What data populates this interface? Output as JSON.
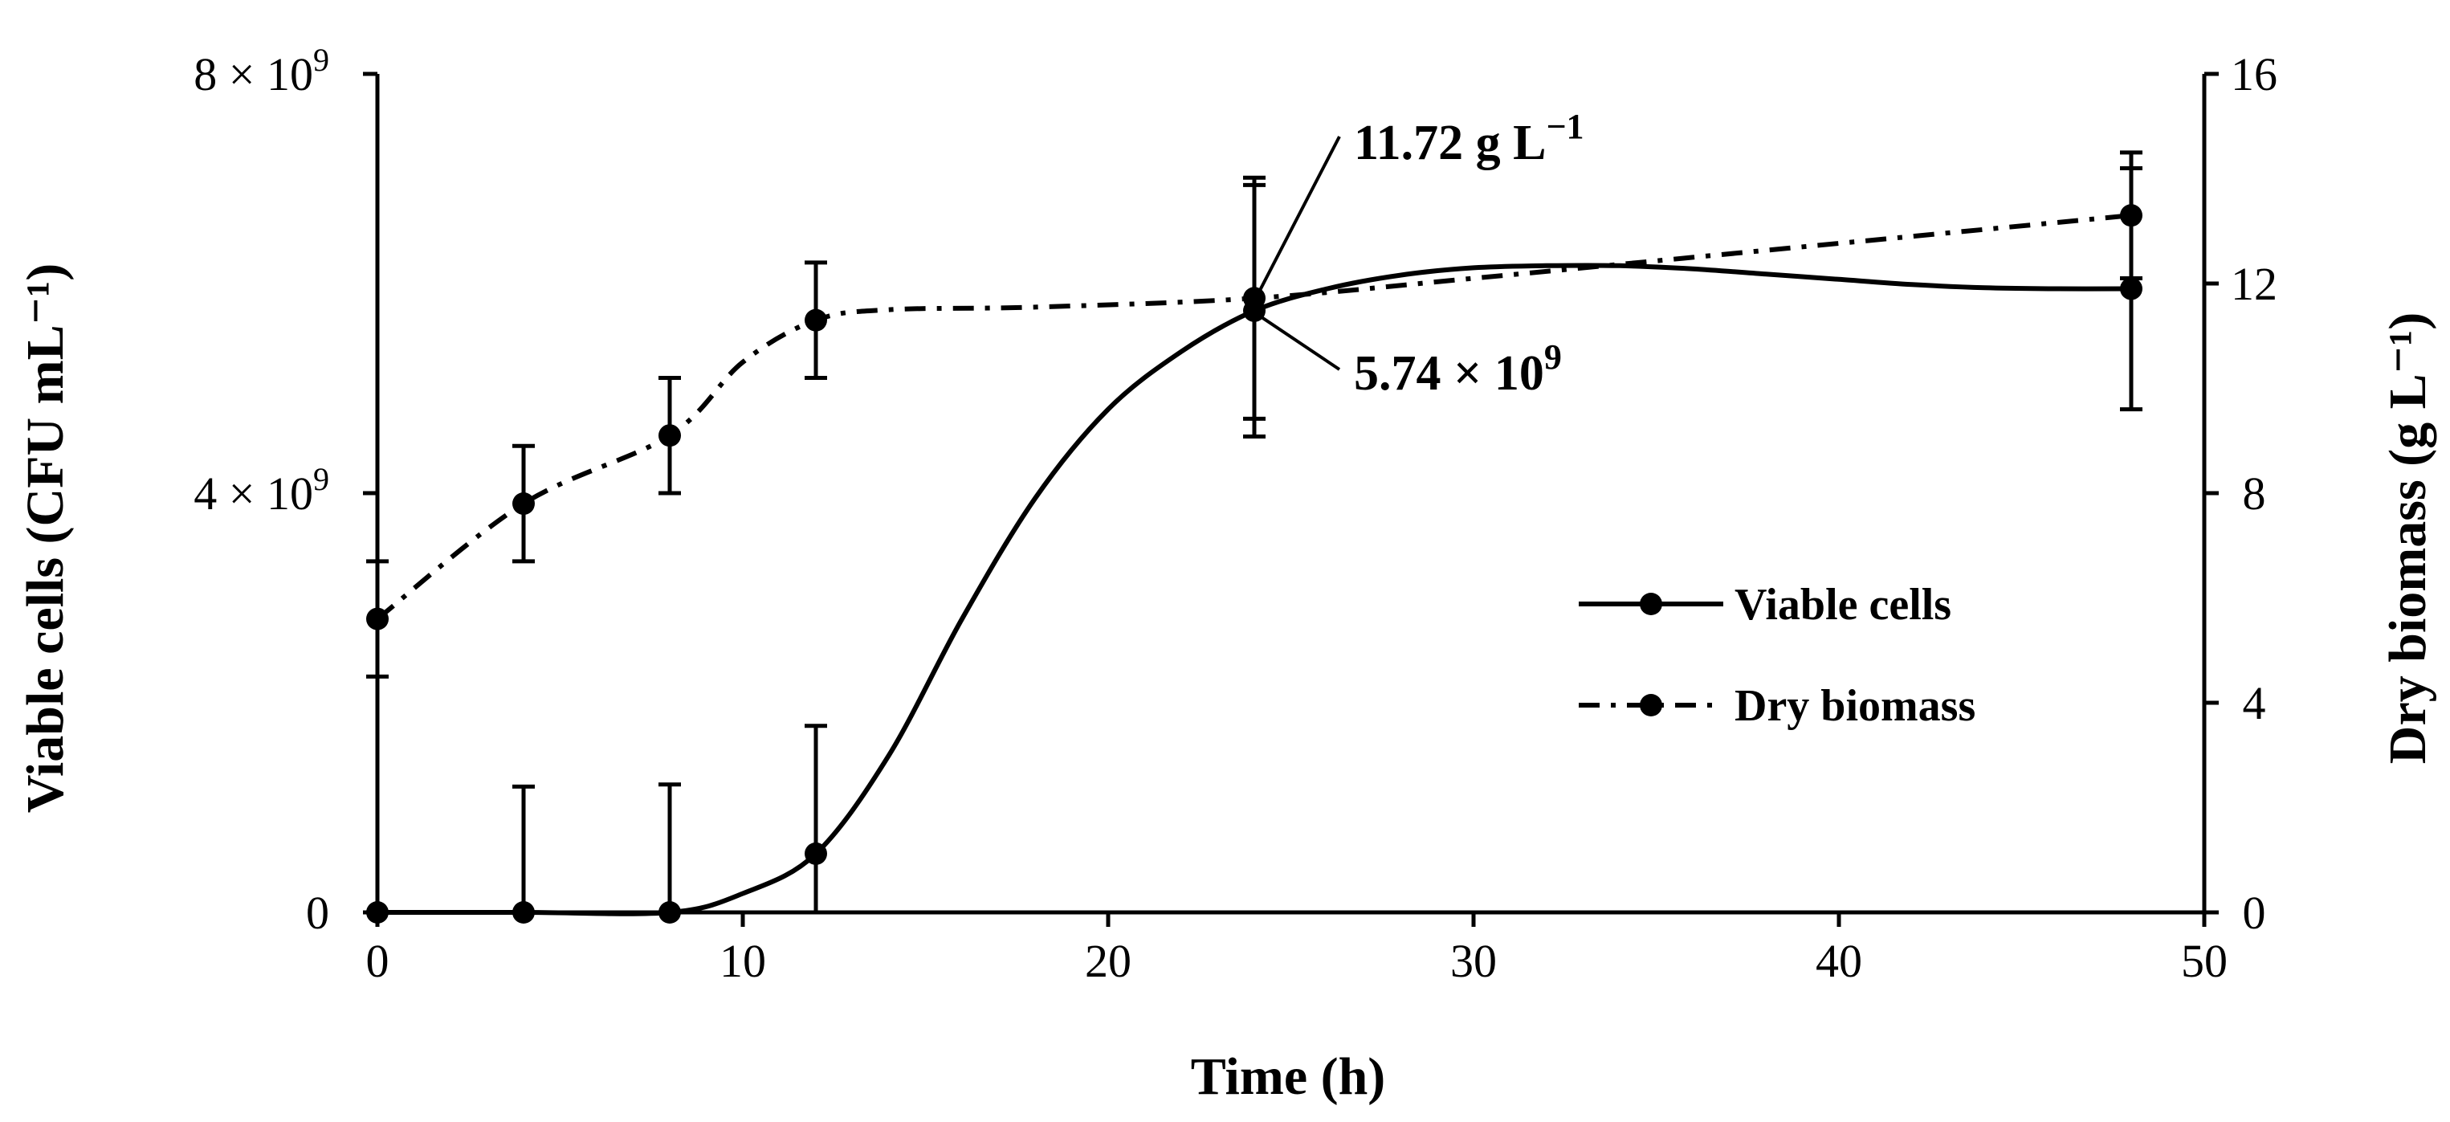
{
  "chart_data": {
    "type": "line",
    "title": "",
    "xlabel": "Time (h)",
    "ylabel_left": "Viable cells (CFU mL⁻¹)",
    "ylabel_right": "Dry biomass (g L⁻¹)",
    "xlim": [
      0,
      50
    ],
    "ylim_left": [
      0,
      8000000000
    ],
    "ylim_right": [
      0,
      16
    ],
    "x_ticks": [
      "0",
      "10",
      "20",
      "30",
      "40",
      "50"
    ],
    "x_tick_values": [
      0,
      10,
      20,
      30,
      40,
      50
    ],
    "y_left_ticks": [
      {
        "value": 0,
        "mantissa": "0",
        "exponent": ""
      },
      {
        "value": 4000000000,
        "mantissa": "4 × 10",
        "exponent": "9"
      },
      {
        "value": 8000000000,
        "mantissa": "8 × 10",
        "exponent": "9"
      }
    ],
    "y_right_ticks": [
      "0",
      "4",
      "8",
      "12",
      "16"
    ],
    "y_right_tick_values": [
      0,
      4,
      8,
      12,
      16
    ],
    "grid": false,
    "legend_position": "center-right",
    "series": [
      {
        "name": "Viable cells",
        "axis": "left",
        "line_style": "solid",
        "x": [
          0,
          4,
          8,
          12,
          24,
          48
        ],
        "values": [
          0,
          0,
          0,
          560000000,
          5740000000,
          5950000000
        ],
        "error": [
          0,
          1200000000,
          1220000000,
          1220000000,
          1200000000,
          1150000000
        ],
        "curve_x": [
          0,
          4,
          8,
          10,
          12,
          14,
          16,
          18,
          20,
          22,
          24,
          26,
          28,
          30,
          32,
          34,
          36,
          38,
          40,
          42,
          44,
          46,
          48
        ],
        "curve_values": [
          0,
          0,
          0,
          180000000,
          560000000,
          1500000000,
          2800000000,
          3950000000,
          4800000000,
          5350000000,
          5740000000,
          5950000000,
          6080000000,
          6150000000,
          6170000000,
          6170000000,
          6140000000,
          6090000000,
          6040000000,
          5990000000,
          5960000000,
          5950000000,
          5950000000
        ]
      },
      {
        "name": "Dry biomass",
        "axis": "right",
        "line_style": "dash-dot",
        "x": [
          0,
          4,
          8,
          12,
          24,
          48
        ],
        "values": [
          5.6,
          7.8,
          9.1,
          11.3,
          11.72,
          13.3
        ],
        "error": [
          1.1,
          1.1,
          1.1,
          1.1,
          2.3,
          1.2
        ],
        "curve_x": [
          0,
          4,
          8,
          10,
          12,
          14,
          18,
          24,
          30,
          36,
          42,
          48
        ],
        "curve_values": [
          5.6,
          7.8,
          9.1,
          10.5,
          11.3,
          11.5,
          11.55,
          11.72,
          12.1,
          12.5,
          12.9,
          13.3
        ]
      }
    ],
    "annotations": [
      {
        "mantissa": "11.72 g L",
        "exponent": "−1",
        "point_x": 24,
        "point_value": 11.72,
        "axis": "right"
      },
      {
        "mantissa": "5.74 × 10",
        "exponent": "9",
        "point_x": 24,
        "point_value": 5740000000,
        "axis": "left"
      }
    ]
  }
}
